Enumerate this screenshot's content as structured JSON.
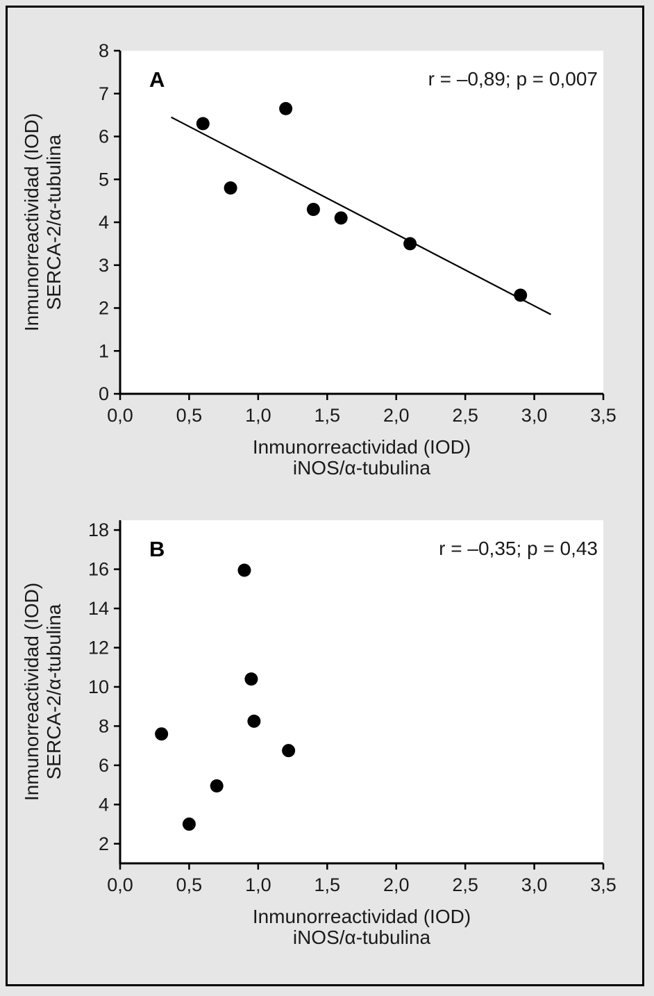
{
  "figure": {
    "background_color": "#e6e6e6",
    "frame_color": "#000000",
    "point_color": "#000000"
  },
  "chart_data": [
    {
      "type": "scatter",
      "panel_label": "A",
      "annotation": "r = –0,89; p = 0,007",
      "xlabel_lines": [
        "Inmunorreactividad (IOD)",
        "iNOS/α-tubulina"
      ],
      "ylabel_lines": [
        "Inmunorreactividad (IOD)",
        "SERCA-2/α-tubulina"
      ],
      "xlim": [
        0,
        3.5
      ],
      "ylim": [
        0,
        8
      ],
      "xticks": [
        0,
        0.5,
        1.0,
        1.5,
        2.0,
        2.5,
        3.0,
        3.5
      ],
      "xtick_labels": [
        "0,0",
        "0,5",
        "1,0",
        "1,5",
        "2,0",
        "2,5",
        "3,0",
        "3,5"
      ],
      "yticks": [
        0,
        1,
        2,
        3,
        4,
        5,
        6,
        7,
        8
      ],
      "ytick_labels": [
        "0",
        "1",
        "2",
        "3",
        "4",
        "5",
        "6",
        "7",
        "8"
      ],
      "grid": false,
      "legend": "none",
      "points": [
        [
          0.6,
          6.3
        ],
        [
          0.8,
          4.8
        ],
        [
          1.2,
          6.65
        ],
        [
          1.4,
          4.3
        ],
        [
          1.6,
          4.1
        ],
        [
          2.1,
          3.5
        ],
        [
          2.9,
          2.3
        ]
      ],
      "fit_line": {
        "x1": 0.37,
        "y1": 6.45,
        "x2": 3.12,
        "y2": 1.85
      }
    },
    {
      "type": "scatter",
      "panel_label": "B",
      "annotation": "r = –0,35; p = 0,43",
      "xlabel_lines": [
        "Inmunorreactividad (IOD)",
        "iNOS/α-tubulina"
      ],
      "ylabel_lines": [
        "Inmunorreactividad (IOD)",
        "SERCA-2/α-tubulina"
      ],
      "xlim": [
        0,
        3.5
      ],
      "ylim": [
        1,
        18.5
      ],
      "xticks": [
        0,
        0.5,
        1.0,
        1.5,
        2.0,
        2.5,
        3.0,
        3.5
      ],
      "xtick_labels": [
        "0,0",
        "0,5",
        "1,0",
        "1,5",
        "2,0",
        "2,5",
        "3,0",
        "3,5"
      ],
      "yticks": [
        2,
        4,
        6,
        8,
        10,
        12,
        14,
        16,
        18
      ],
      "ytick_labels": [
        "2",
        "4",
        "6",
        "8",
        "10",
        "12",
        "14",
        "16",
        "18"
      ],
      "grid": false,
      "legend": "none",
      "points": [
        [
          0.3,
          7.6
        ],
        [
          0.5,
          3.0
        ],
        [
          0.7,
          4.95
        ],
        [
          0.9,
          15.95
        ],
        [
          0.95,
          10.4
        ],
        [
          0.97,
          8.25
        ],
        [
          1.22,
          6.75
        ]
      ],
      "fit_line": null
    }
  ]
}
